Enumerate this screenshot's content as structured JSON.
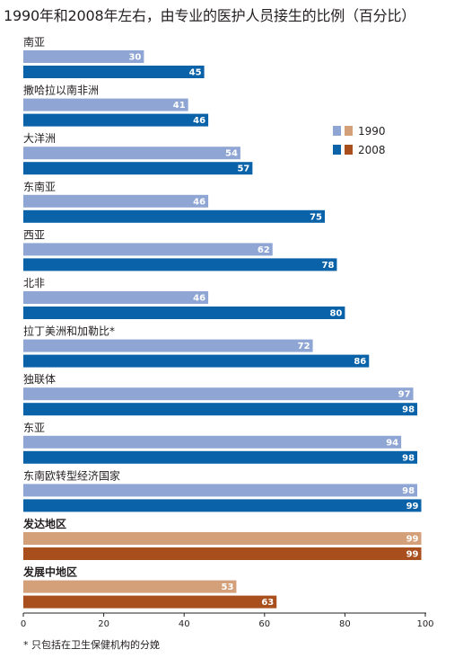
{
  "chart_data": {
    "type": "bar",
    "orientation": "horizontal",
    "title": "1990年和2008年左右，由专业的医护人员接生的比例（百分比）",
    "categories": [
      "南亚",
      "撒哈拉以南非洲",
      "大洋洲",
      "东南亚",
      "西亚",
      "北非",
      "拉丁美洲和加勒比*",
      "独联体",
      "东亚",
      "东南欧转型经济国家",
      "发达地区",
      "发展中地区"
    ],
    "highlighted_categories": [
      "发达地区",
      "发展中地区"
    ],
    "series": [
      {
        "name": "1990",
        "values": [
          30,
          41,
          54,
          46,
          62,
          46,
          72,
          97,
          94,
          98,
          99,
          53
        ]
      },
      {
        "name": "2008",
        "values": [
          45,
          46,
          57,
          75,
          78,
          80,
          86,
          98,
          98,
          99,
          99,
          63
        ]
      }
    ],
    "xlim": [
      0,
      100
    ],
    "xticks": [
      "0",
      "20",
      "40",
      "60",
      "80",
      "100"
    ],
    "grid": false,
    "legend_position": "right",
    "colors": {
      "series_1990": "#8fa6d4",
      "series_2008": "#0a62a9",
      "highlight_1990": "#d3a07a",
      "highlight_2008": "#a94e1d"
    },
    "footnote": "* 只包括在卫生保健机构的分娩"
  }
}
